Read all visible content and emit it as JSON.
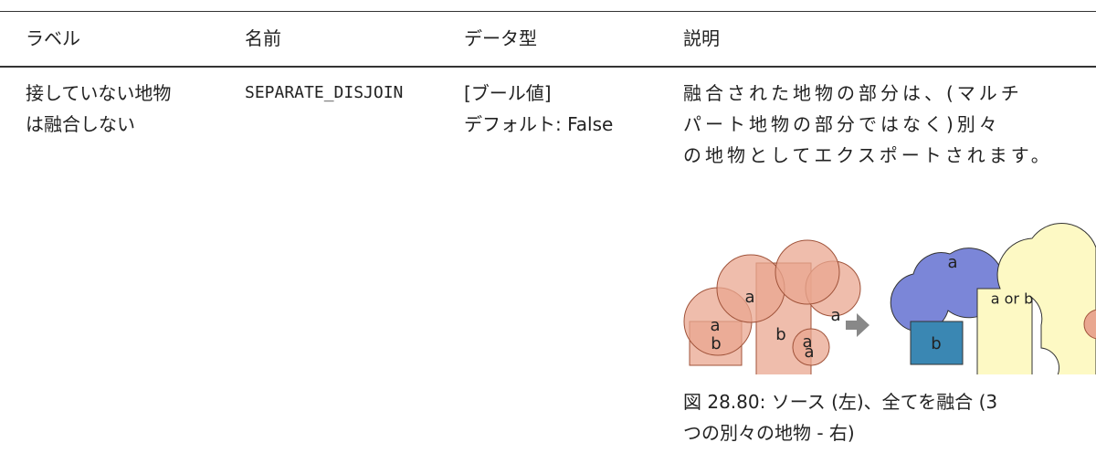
{
  "table": {
    "headers": [
      "ラベル",
      "名前",
      "データ型",
      "説明"
    ],
    "rows": [
      {
        "label": [
          "接していない地物",
          "は融合しない"
        ],
        "name": "SEPARATE_DISJOIN",
        "type": [
          "[ブール値]",
          "デフォルト: False"
        ],
        "description": [
          "融合された地物の部分は、(マルチ",
          "パート地物の部分ではなく)別々",
          "の地物としてエクスポートされます。"
        ],
        "figure": {
          "labels": [
            "a",
            "a",
            "a",
            "a",
            "b",
            "b",
            "a",
            "a",
            "b",
            "a or b"
          ]
        },
        "caption": [
          "図 28.80: ソース (左)、全てを融合 (3",
          "つの別々の地物 - 右)"
        ]
      }
    ]
  }
}
